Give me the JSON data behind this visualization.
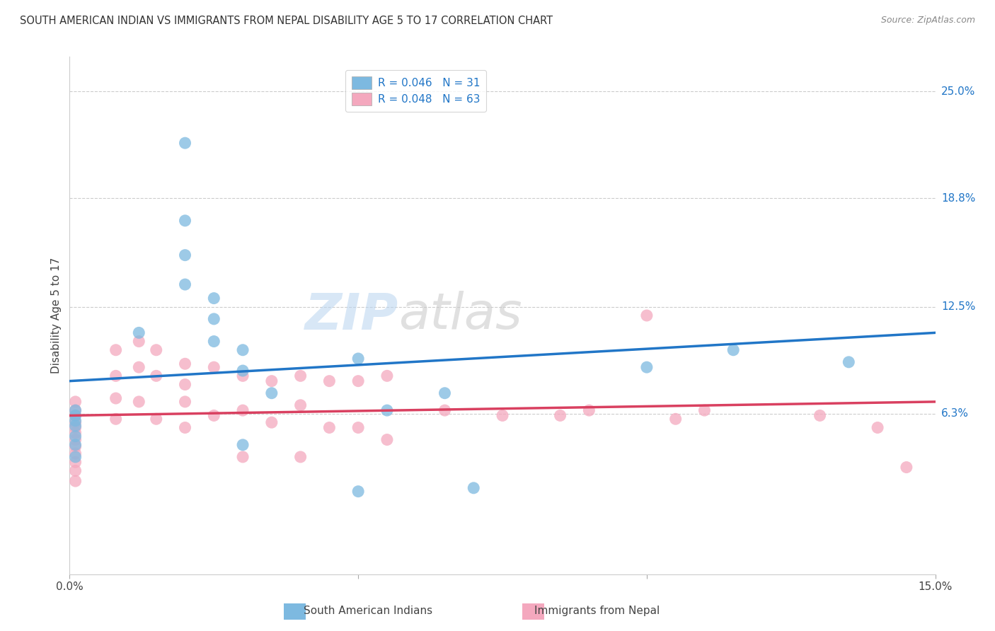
{
  "title": "SOUTH AMERICAN INDIAN VS IMMIGRANTS FROM NEPAL DISABILITY AGE 5 TO 17 CORRELATION CHART",
  "source": "Source: ZipAtlas.com",
  "ylabel": "Disability Age 5 to 17",
  "xlim": [
    0.0,
    0.15
  ],
  "ylim": [
    -0.03,
    0.27
  ],
  "ytick_labels_right": [
    "25.0%",
    "18.8%",
    "12.5%",
    "6.3%"
  ],
  "ytick_vals_right": [
    0.25,
    0.188,
    0.125,
    0.063
  ],
  "blue_R": "0.046",
  "blue_N": "31",
  "pink_R": "0.048",
  "pink_N": "63",
  "blue_color": "#7db9e0",
  "pink_color": "#f4a8be",
  "blue_line_color": "#2176c7",
  "pink_line_color": "#d94060",
  "legend_label_blue": "South American Indians",
  "legend_label_pink": "Immigrants from Nepal",
  "watermark_zip": "ZIP",
  "watermark_atlas": "atlas",
  "blue_points_x": [
    0.001,
    0.001,
    0.001,
    0.001,
    0.001,
    0.001,
    0.001,
    0.012,
    0.02,
    0.02,
    0.02,
    0.02,
    0.025,
    0.025,
    0.025,
    0.03,
    0.03,
    0.03,
    0.035,
    0.05,
    0.05,
    0.055,
    0.065,
    0.07,
    0.1,
    0.115,
    0.135
  ],
  "blue_points_y": [
    0.065,
    0.062,
    0.059,
    0.056,
    0.05,
    0.045,
    0.038,
    0.11,
    0.22,
    0.175,
    0.155,
    0.138,
    0.13,
    0.118,
    0.105,
    0.1,
    0.088,
    0.045,
    0.075,
    0.095,
    0.018,
    0.065,
    0.075,
    0.02,
    0.09,
    0.1,
    0.093
  ],
  "pink_points_x": [
    0.001,
    0.001,
    0.001,
    0.001,
    0.001,
    0.001,
    0.001,
    0.001,
    0.001,
    0.001,
    0.001,
    0.001,
    0.008,
    0.008,
    0.008,
    0.008,
    0.012,
    0.012,
    0.012,
    0.015,
    0.015,
    0.015,
    0.02,
    0.02,
    0.02,
    0.02,
    0.025,
    0.025,
    0.03,
    0.03,
    0.03,
    0.035,
    0.035,
    0.04,
    0.04,
    0.04,
    0.045,
    0.045,
    0.05,
    0.05,
    0.055,
    0.055,
    0.065,
    0.075,
    0.085,
    0.09,
    0.1,
    0.105,
    0.11,
    0.13,
    0.14,
    0.145
  ],
  "pink_points_y": [
    0.07,
    0.065,
    0.062,
    0.058,
    0.055,
    0.052,
    0.048,
    0.044,
    0.04,
    0.035,
    0.03,
    0.024,
    0.1,
    0.085,
    0.072,
    0.06,
    0.105,
    0.09,
    0.07,
    0.1,
    0.085,
    0.06,
    0.092,
    0.08,
    0.07,
    0.055,
    0.09,
    0.062,
    0.085,
    0.065,
    0.038,
    0.082,
    0.058,
    0.085,
    0.068,
    0.038,
    0.082,
    0.055,
    0.082,
    0.055,
    0.085,
    0.048,
    0.065,
    0.062,
    0.062,
    0.065,
    0.12,
    0.06,
    0.065,
    0.062,
    0.055,
    0.032
  ],
  "blue_trend_x": [
    0.0,
    0.15
  ],
  "blue_trend_y": [
    0.082,
    0.11
  ],
  "pink_trend_x": [
    0.0,
    0.15
  ],
  "pink_trend_y": [
    0.062,
    0.07
  ]
}
